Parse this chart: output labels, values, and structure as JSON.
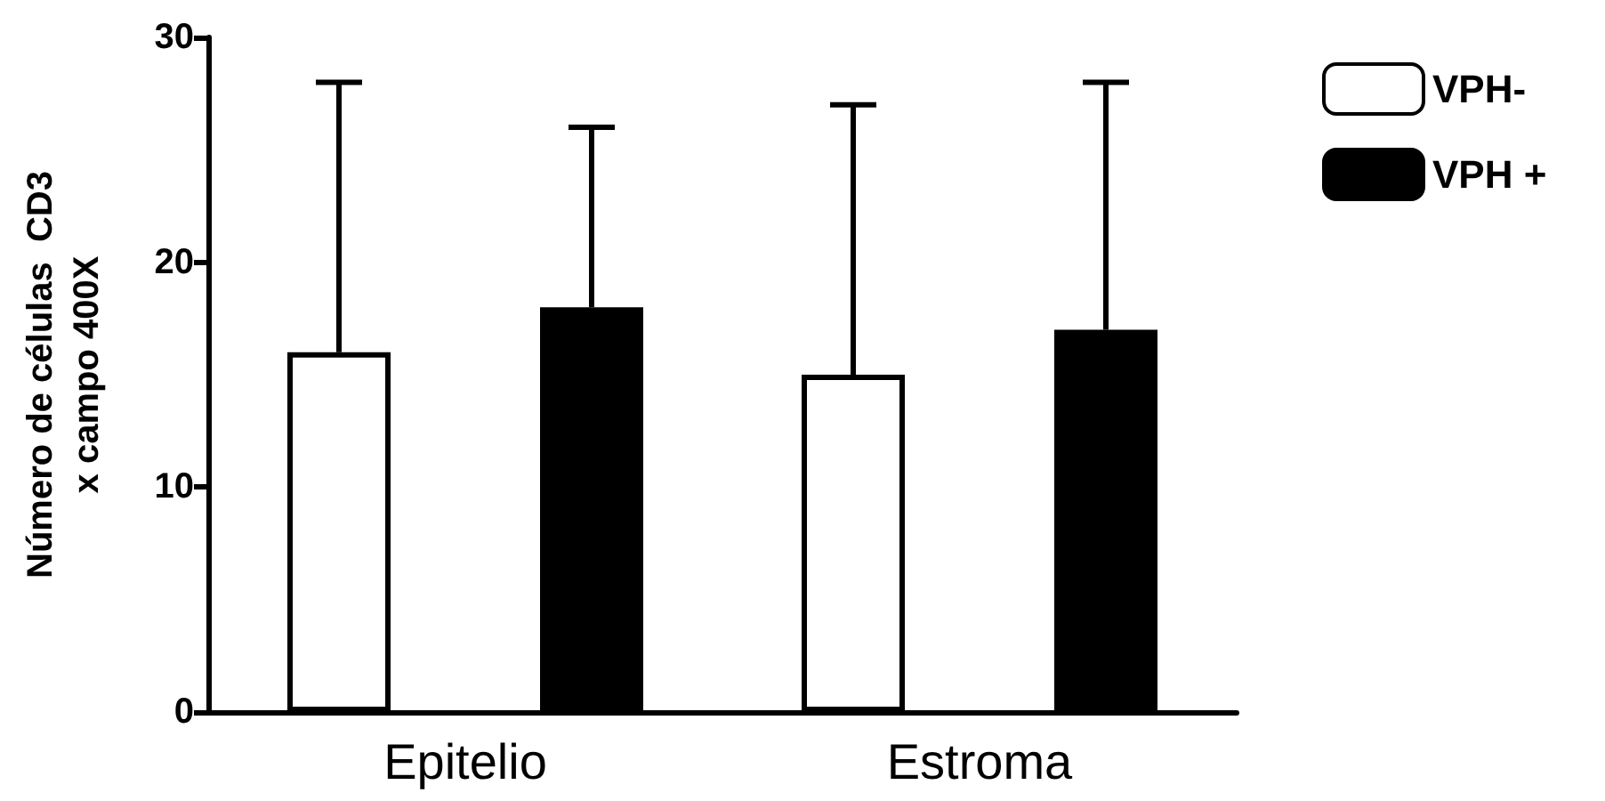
{
  "chart_data": {
    "type": "bar",
    "ylabel": "Número de células  CD3\nx campo 400X",
    "categories": [
      "Epitelio",
      "Estroma"
    ],
    "series": [
      {
        "name": "VPH-",
        "color": "#ffffff",
        "values": [
          16,
          15
        ],
        "errors": [
          [
            16,
            28
          ],
          [
            15,
            27
          ]
        ]
      },
      {
        "name": "VPH +",
        "color": "#000000",
        "values": [
          18,
          17
        ],
        "errors": [
          [
            18,
            26
          ],
          [
            17,
            28
          ]
        ]
      }
    ],
    "ylim": [
      0,
      30
    ],
    "yticks": [
      0,
      10,
      20,
      30
    ],
    "grid": false,
    "legend": "top right"
  }
}
